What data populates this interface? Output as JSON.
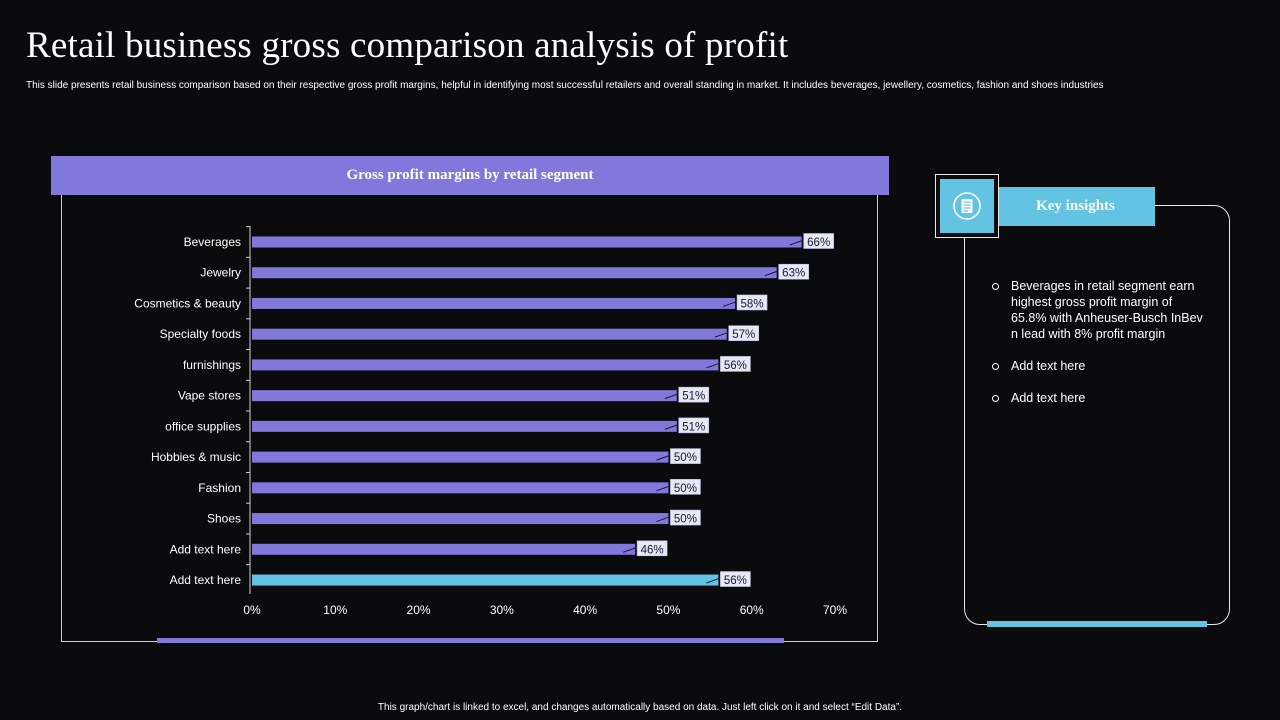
{
  "slide": {
    "title": "Retail business gross comparison analysis of profit",
    "subtitle": "This slide presents retail business comparison based on their respective gross profit margins, helpful in identifying most successful retailers and overall standing in market. It includes beverages, jewellery, cosmetics, fashion and shoes industries",
    "footer": "This graph/chart is linked to excel, and changes automatically based on data. Just left click on it and select “Edit Data”."
  },
  "chart_data": {
    "type": "bar",
    "orientation": "horizontal",
    "title": "Gross profit margins by retail segment",
    "categories": [
      "Beverages",
      "Jewelry",
      "Cosmetics & beauty",
      "Specialty foods",
      "furnishings",
      "Vape stores",
      "office supplies",
      "Hobbies & music",
      "Fashion",
      "Shoes",
      "Add text here",
      "Add text here"
    ],
    "values": [
      66,
      63,
      58,
      57,
      56,
      51,
      51,
      50,
      50,
      50,
      46,
      56
    ],
    "value_labels": [
      "66%",
      "63%",
      "58%",
      "57%",
      "56%",
      "51%",
      "51%",
      "50%",
      "50%",
      "50%",
      "46%",
      "56%"
    ],
    "highlight_index": 11,
    "xlim": [
      0,
      70
    ],
    "xticks": [
      "0%",
      "10%",
      "20%",
      "30%",
      "40%",
      "50%",
      "60%",
      "70%"
    ],
    "xlabel": "",
    "ylabel": "",
    "grid": false,
    "colors": {
      "bar": "#8278dc",
      "highlight": "#62c3e3",
      "label_bg": "#e6e8f6"
    }
  },
  "insights": {
    "heading": "Key insights",
    "icon": "document-icon",
    "items": [
      "Beverages in retail segment earn highest gross profit margin of 65.8% with Anheuser-Busch InBev n lead with 8% profit margin",
      "Add text here",
      "Add text here"
    ]
  }
}
